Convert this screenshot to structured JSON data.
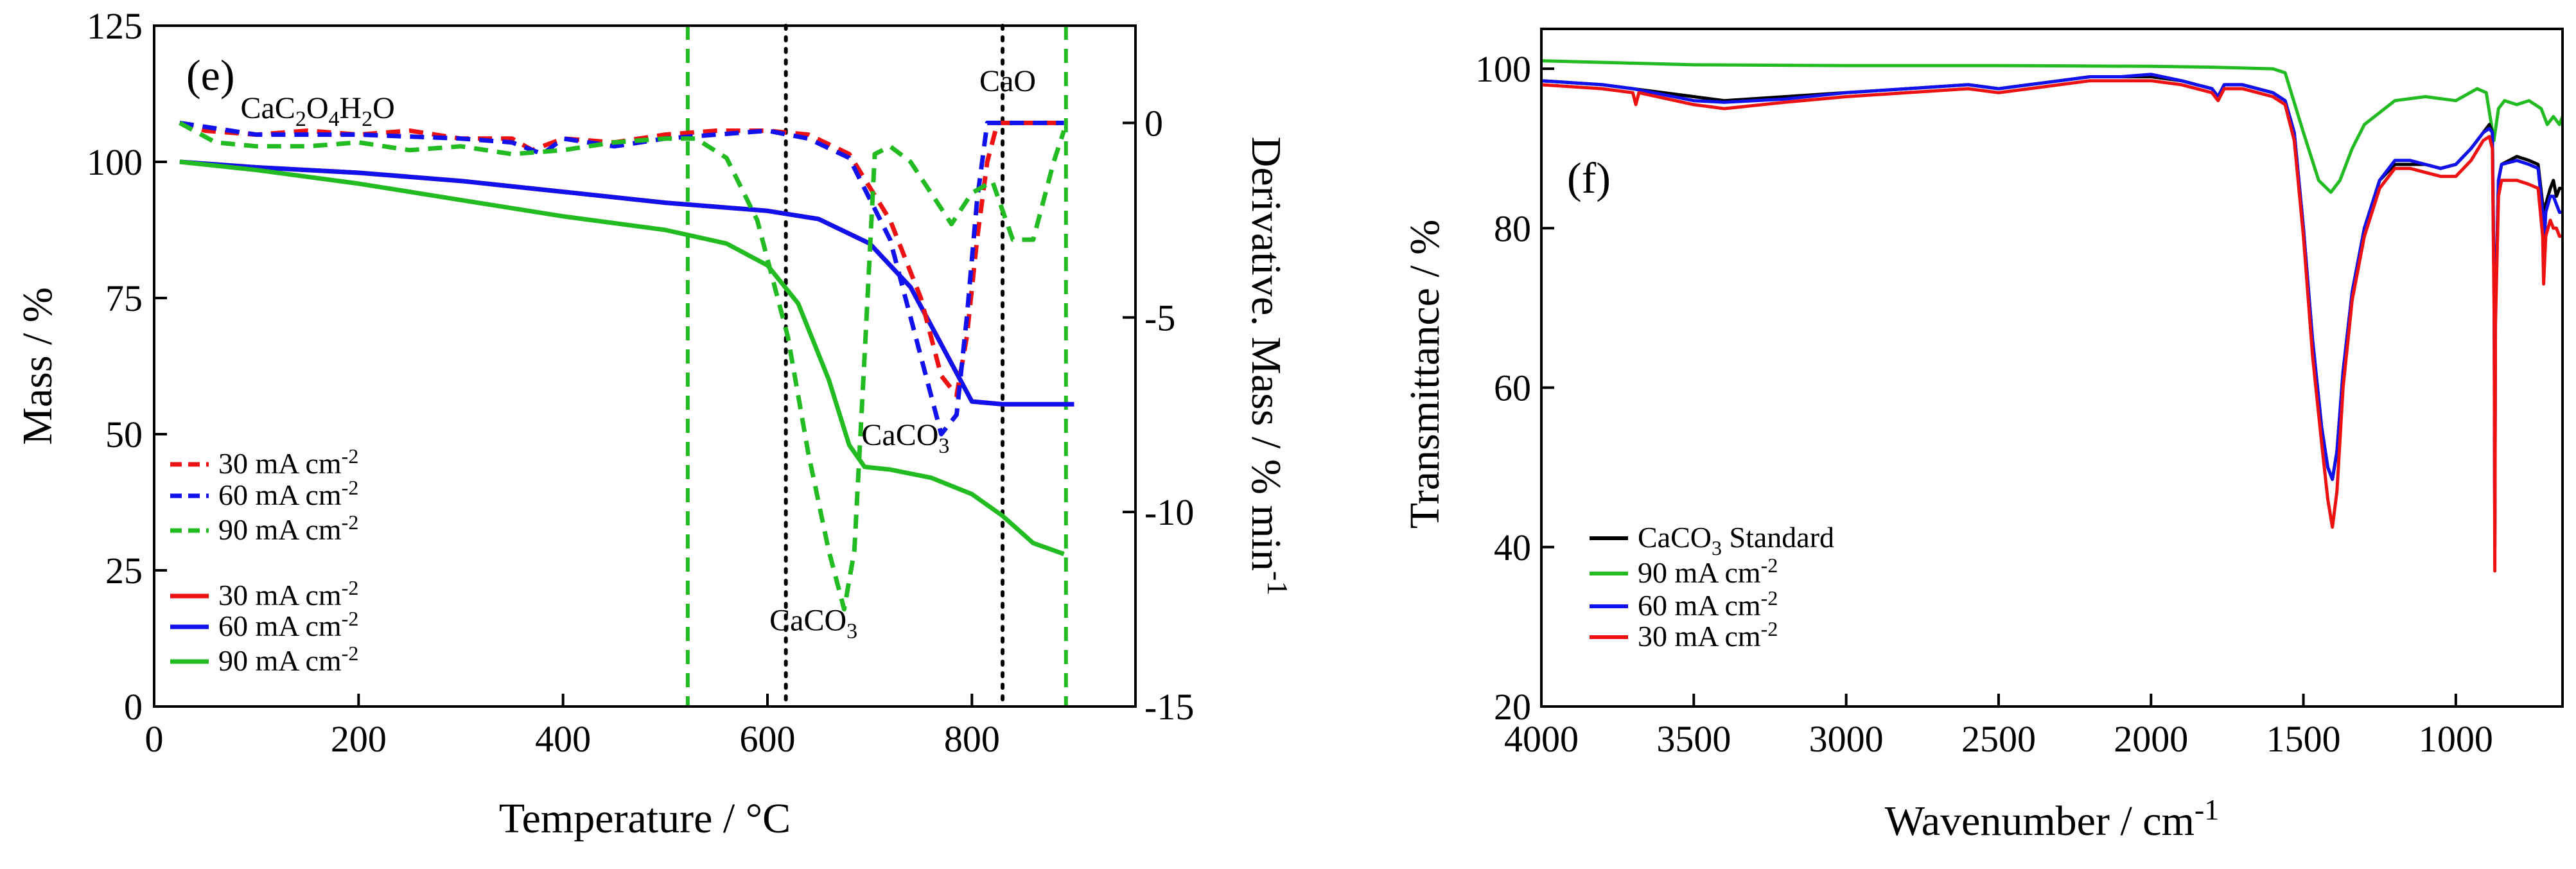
{
  "chart_data": [
    {
      "id": "e",
      "type": "line",
      "panel_label": "(e)",
      "xlabel": "Temperature / °C",
      "ylabel": "Mass / %",
      "y2label": "Derivative. Mass  / % min",
      "y2label_sup": "-1",
      "xlim": [
        0,
        960
      ],
      "ylim": [
        0,
        125
      ],
      "y2lim": [
        -15,
        2.5
      ],
      "xticks": [
        0,
        200,
        400,
        600,
        800
      ],
      "yticks": [
        0,
        25,
        50,
        75,
        100,
        125
      ],
      "y2ticks": [
        0,
        -5,
        -10,
        -15
      ],
      "vlines": [
        {
          "x": 522,
          "color": "#22bb22",
          "style": "dashed"
        },
        {
          "x": 618,
          "color": "#000000",
          "style": "dotted"
        },
        {
          "x": 830,
          "color": "#000000",
          "style": "dotted"
        },
        {
          "x": 892,
          "color": "#22bb22",
          "style": "dashed"
        }
      ],
      "annotations": [
        {
          "text": "CaC",
          "sub": "2",
          "text2": "O",
          "sub2": "4",
          "text3": "H",
          "sub3": "2",
          "text4": "O",
          "x": 160,
          "y": 108
        },
        {
          "text": "CaO",
          "x": 835,
          "y": 113
        },
        {
          "text": "CaCO",
          "sub": "3",
          "x": 735,
          "y": 48
        },
        {
          "text": "CaCO",
          "sub": "3",
          "x": 645,
          "y": 14
        }
      ],
      "legend": [
        {
          "label": "30 mA cm",
          "sup": "-2",
          "color": "#ee1111",
          "style": "dashed"
        },
        {
          "label": "60 mA cm",
          "sup": "-2",
          "color": "#1111ee",
          "style": "dashed"
        },
        {
          "label": "90 mA cm",
          "sup": "-2",
          "color": "#22bb22",
          "style": "dashed"
        },
        {
          "label": "30 mA cm",
          "sup": "-2",
          "color": "#ee1111",
          "style": "solid"
        },
        {
          "label": "60 mA cm",
          "sup": "-2",
          "color": "#1111ee",
          "style": "solid"
        },
        {
          "label": "90 mA cm",
          "sup": "-2",
          "color": "#22bb22",
          "style": "solid"
        }
      ],
      "series": [
        {
          "name": "30 mA cm-2 mass",
          "axis": "left",
          "style": "solid",
          "color": "#ee1111",
          "x": [
            25,
            100,
            200,
            300,
            400,
            500,
            600,
            650,
            700,
            740,
            780,
            800,
            830,
            900
          ],
          "y": [
            100,
            99,
            98,
            96.5,
            94.5,
            92.5,
            91,
            89.5,
            85,
            77,
            63,
            56,
            55.5,
            55.5
          ]
        },
        {
          "name": "60 mA cm-2 mass",
          "axis": "left",
          "style": "solid",
          "color": "#1111ee",
          "x": [
            25,
            100,
            200,
            300,
            400,
            500,
            600,
            650,
            700,
            740,
            780,
            800,
            830,
            900
          ],
          "y": [
            100,
            99,
            98,
            96.5,
            94.5,
            92.5,
            91,
            89.5,
            85,
            77,
            63,
            56,
            55.5,
            55.5
          ]
        },
        {
          "name": "90 mA cm-2 mass",
          "axis": "left",
          "style": "solid",
          "color": "#22bb22",
          "x": [
            25,
            100,
            200,
            300,
            400,
            500,
            560,
            600,
            630,
            660,
            680,
            695,
            720,
            760,
            800,
            830,
            860,
            890
          ],
          "y": [
            100,
            98.5,
            96,
            93,
            90,
            87.5,
            85,
            81,
            74,
            60,
            48,
            44,
            43.5,
            42,
            39,
            35,
            30,
            28
          ]
        },
        {
          "name": "30 mA cm-2 derivative",
          "axis": "right",
          "style": "dashed",
          "color": "#ee1111",
          "x": [
            25,
            50,
            100,
            150,
            200,
            250,
            300,
            350,
            370,
            400,
            450,
            500,
            550,
            600,
            640,
            680,
            720,
            750,
            770,
            785,
            795,
            805,
            815,
            825,
            835,
            860,
            890
          ],
          "y": [
            0,
            -0.2,
            -0.3,
            -0.2,
            -0.3,
            -0.2,
            -0.4,
            -0.4,
            -0.7,
            -0.4,
            -0.5,
            -0.3,
            -0.2,
            -0.2,
            -0.3,
            -0.8,
            -2.5,
            -4.5,
            -6.5,
            -7,
            -5.5,
            -3,
            -1,
            0,
            0,
            0,
            0
          ]
        },
        {
          "name": "60 mA cm-2 derivative",
          "axis": "right",
          "style": "dashed",
          "color": "#1111ee",
          "x": [
            25,
            100,
            200,
            300,
            350,
            380,
            400,
            450,
            500,
            550,
            600,
            640,
            680,
            720,
            750,
            770,
            785,
            795,
            805,
            815,
            830,
            860,
            890
          ],
          "y": [
            0,
            -0.3,
            -0.3,
            -0.4,
            -0.5,
            -0.8,
            -0.4,
            -0.6,
            -0.4,
            -0.3,
            -0.2,
            -0.4,
            -0.9,
            -3,
            -6,
            -8,
            -7.5,
            -5,
            -2,
            0,
            0,
            0,
            0
          ]
        },
        {
          "name": "90 mA cm-2 derivative",
          "axis": "right",
          "style": "dashed",
          "color": "#22bb22",
          "x": [
            25,
            60,
            100,
            150,
            200,
            250,
            300,
            350,
            400,
            450,
            500,
            530,
            560,
            590,
            620,
            640,
            660,
            675,
            685,
            695,
            705,
            720,
            740,
            760,
            780,
            800,
            820,
            840,
            860,
            880,
            890
          ],
          "y": [
            0,
            -0.5,
            -0.6,
            -0.6,
            -0.5,
            -0.7,
            -0.6,
            -0.8,
            -0.7,
            -0.5,
            -0.4,
            -0.4,
            -0.9,
            -2.5,
            -5.5,
            -8.5,
            -11,
            -12.5,
            -11,
            -6,
            -0.8,
            -0.6,
            -1,
            -1.8,
            -2.6,
            -1.8,
            -1.5,
            -3,
            -3,
            -1,
            -0.2
          ]
        }
      ]
    },
    {
      "id": "f",
      "type": "line",
      "panel_label": "(f)",
      "xlabel": "Wavenumber / cm",
      "xlabel_sup": "-1",
      "ylabel": "Transmittance / %",
      "xlim": [
        4000,
        650
      ],
      "ylim": [
        20,
        105
      ],
      "xticks": [
        4000,
        3500,
        3000,
        2500,
        2000,
        1500,
        1000
      ],
      "yticks": [
        20,
        40,
        60,
        80,
        100
      ],
      "legend": [
        {
          "label": "CaCO",
          "sub": "3",
          "label2": " Standard",
          "color": "#000000"
        },
        {
          "label": "90 mA cm",
          "sup": "-2",
          "color": "#22bb22"
        },
        {
          "label": "60 mA cm",
          "sup": "-2",
          "color": "#1111ee"
        },
        {
          "label": "30 mA cm",
          "sup": "-2",
          "color": "#ee1111"
        }
      ],
      "series": [
        {
          "name": "90 mA cm-2",
          "color": "#22bb22",
          "x": [
            4000,
            3800,
            3500,
            3000,
            2500,
            2000,
            1800,
            1600,
            1560,
            1500,
            1450,
            1410,
            1380,
            1340,
            1300,
            1200,
            1100,
            1000,
            930,
            900,
            875,
            860,
            840,
            800,
            760,
            720,
            700,
            680,
            660,
            650
          ],
          "y": [
            101,
            100.8,
            100.5,
            100.4,
            100.4,
            100.3,
            100.2,
            100,
            99.5,
            92,
            86,
            84.5,
            86,
            90,
            93,
            96,
            96.5,
            96,
            97.5,
            97,
            91,
            95,
            96,
            95.5,
            96,
            95,
            93,
            94,
            93,
            94
          ]
        },
        {
          "name": "CaCO3 Standard",
          "color": "#000000",
          "x": [
            4000,
            3800,
            3700,
            3500,
            3400,
            3200,
            3000,
            2800,
            2600,
            2500,
            2400,
            2300,
            2200,
            2100,
            2000,
            1900,
            1850,
            1800,
            1780,
            1760,
            1700,
            1600,
            1560,
            1530,
            1500,
            1470,
            1440,
            1420,
            1405,
            1390,
            1370,
            1340,
            1300,
            1250,
            1200,
            1150,
            1100,
            1050,
            1000,
            950,
            910,
            890,
            880,
            874,
            872,
            870,
            860,
            850,
            800,
            760,
            730,
            715,
            712,
            705,
            690,
            680,
            670,
            660,
            650
          ],
          "y": [
            98.5,
            98,
            97.5,
            96.5,
            96,
            96.5,
            97,
            97.5,
            98,
            97.5,
            98,
            98.5,
            99,
            99,
            99,
            98.5,
            98,
            97.5,
            96.5,
            98,
            98,
            97,
            96,
            92,
            80,
            66,
            55,
            50,
            48.5,
            52,
            62,
            72,
            80,
            86,
            88,
            88,
            88,
            87.5,
            88,
            90,
            92,
            93,
            92,
            70,
            42,
            70,
            86,
            88,
            89,
            88.5,
            88,
            83,
            76,
            83,
            85,
            86,
            84,
            85,
            85
          ]
        },
        {
          "name": "60 mA cm-2",
          "color": "#1111ee",
          "x": [
            4000,
            3800,
            3700,
            3500,
            3400,
            3200,
            3000,
            2800,
            2600,
            2500,
            2400,
            2300,
            2200,
            2100,
            2000,
            1900,
            1850,
            1800,
            1780,
            1760,
            1700,
            1600,
            1560,
            1530,
            1500,
            1470,
            1440,
            1420,
            1405,
            1390,
            1370,
            1340,
            1300,
            1250,
            1200,
            1150,
            1100,
            1050,
            1000,
            950,
            910,
            890,
            880,
            874,
            872,
            870,
            860,
            850,
            800,
            760,
            730,
            715,
            712,
            705,
            690,
            680,
            670,
            660,
            650
          ],
          "y": [
            98.5,
            98,
            97.5,
            96,
            95.8,
            96.2,
            97,
            97.5,
            98,
            97.5,
            98,
            98.5,
            99,
            99,
            99.3,
            98.5,
            98,
            97.5,
            96.5,
            98,
            98,
            97,
            96,
            92,
            80,
            66,
            55,
            50,
            48.5,
            52,
            62,
            72,
            80,
            86,
            88.5,
            88.5,
            88,
            87.5,
            88,
            90,
            92,
            92.5,
            92,
            70,
            40,
            70,
            86,
            88,
            88.5,
            88,
            87.5,
            82,
            76,
            82,
            84,
            84,
            83,
            82,
            82
          ]
        },
        {
          "name": "30 mA cm-2",
          "color": "#ee1111",
          "x": [
            4000,
            3800,
            3700,
            3690,
            3680,
            3500,
            3400,
            3200,
            3000,
            2800,
            2600,
            2500,
            2400,
            2300,
            2200,
            2100,
            2000,
            1900,
            1850,
            1800,
            1780,
            1760,
            1700,
            1600,
            1560,
            1530,
            1500,
            1470,
            1440,
            1420,
            1405,
            1390,
            1370,
            1340,
            1300,
            1250,
            1200,
            1150,
            1100,
            1050,
            1000,
            950,
            910,
            890,
            880,
            874,
            872,
            870,
            860,
            850,
            800,
            760,
            730,
            715,
            712,
            705,
            690,
            680,
            670,
            660,
            650
          ],
          "y": [
            98,
            97.5,
            97,
            95.5,
            97,
            95.5,
            95,
            95.8,
            96.5,
            97,
            97.5,
            97,
            97.5,
            98,
            98.5,
            98.5,
            98.5,
            98,
            97.5,
            97,
            96,
            97.5,
            97.5,
            96.5,
            95.5,
            91,
            79,
            64,
            53,
            46,
            42.5,
            47,
            60,
            71,
            79,
            85,
            87.5,
            87.5,
            87,
            86.5,
            86.5,
            88.5,
            91,
            91.5,
            90,
            68,
            37,
            68,
            84,
            86,
            86,
            85.5,
            85,
            79,
            73,
            79,
            81,
            80,
            80,
            79,
            79
          ]
        }
      ]
    }
  ]
}
